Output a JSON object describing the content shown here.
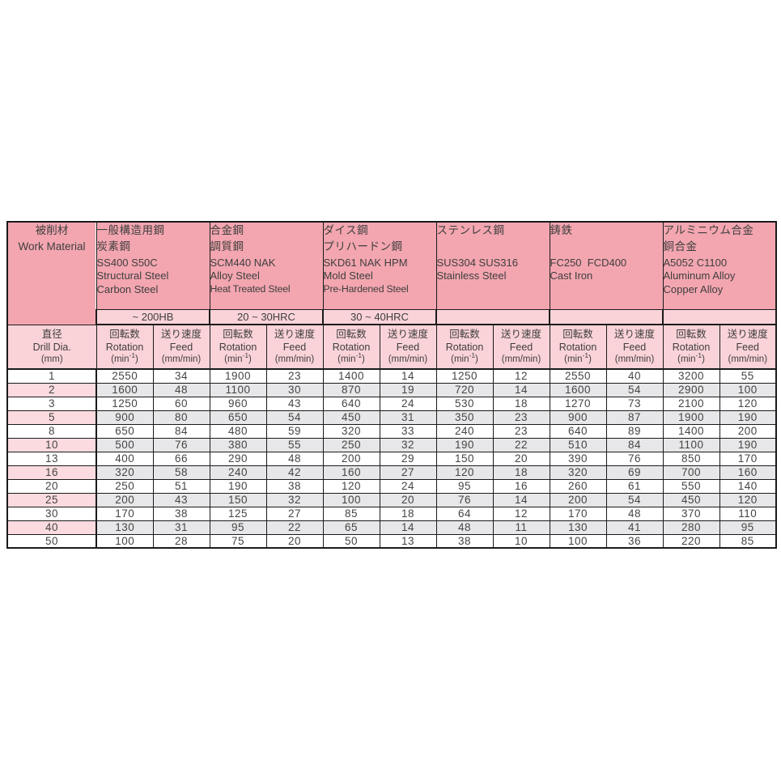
{
  "colors": {
    "header_pink": "#f3a6b0",
    "light_pink": "#fad3d8",
    "row_pink": "#fbdbdf",
    "row_gray": "#e7e7e9",
    "border": "#1a1a1a"
  },
  "table": {
    "corner": {
      "jp": "被削材",
      "en": "Work Material"
    },
    "dia_header": {
      "jp": "直径",
      "en": "Drill Dia.",
      "unit": "(mm)"
    },
    "col_header": {
      "rotation_jp": "回転数",
      "rotation_en": "Rotation",
      "rotation_unit_prefix": "(min",
      "rotation_unit_sup": "-1",
      "rotation_unit_suffix": ")",
      "feed_jp": "送り速度",
      "feed_en": "Feed",
      "feed_unit": "(mm/min)"
    },
    "materials": [
      {
        "slug": "structural-carbon-steel",
        "jp_lines": [
          "一般構造用鋼",
          "炭素鋼"
        ],
        "en_lines": [
          "SS400 S50C",
          "Structural Steel",
          "Carbon Steel"
        ],
        "hardness": "~ 200HB"
      },
      {
        "slug": "alloy-heat-treated-steel",
        "jp_lines": [
          "合金鋼",
          "調質鋼"
        ],
        "en_lines": [
          "SCM440 NAK",
          "Alloy Steel",
          "Heat Treated Steel"
        ],
        "hardness": "20 ~ 30HRC"
      },
      {
        "slug": "mold-pre-hardened-steel",
        "jp_lines": [
          "ダイス鋼",
          "プリハードン鋼"
        ],
        "en_lines": [
          "SKD61 NAK HPM",
          "Mold Steel",
          "Pre-Hardened Steel"
        ],
        "hardness": "30 ~ 40HRC"
      },
      {
        "slug": "stainless-steel",
        "jp_lines": [
          "ステンレス鋼"
        ],
        "en_lines": [
          "SUS304 SUS316",
          "Stainless Steel"
        ],
        "hardness": ""
      },
      {
        "slug": "cast-iron",
        "jp_lines": [
          "鋳鉄"
        ],
        "en_lines": [
          "FC250  FCD400",
          "Cast Iron"
        ],
        "hardness": ""
      },
      {
        "slug": "aluminum-copper-alloy",
        "jp_lines": [
          "アルミニウム合金",
          "銅合金"
        ],
        "en_lines": [
          "A5052 C1100",
          "Aluminum Alloy",
          "Copper Alloy"
        ],
        "hardness": ""
      }
    ],
    "rows": [
      {
        "dia": "1",
        "values": [
          "2550",
          "34",
          "1900",
          "23",
          "1400",
          "14",
          "1250",
          "12",
          "2550",
          "40",
          "3200",
          "55"
        ]
      },
      {
        "dia": "2",
        "values": [
          "1600",
          "48",
          "1100",
          "30",
          "870",
          "19",
          "720",
          "14",
          "1600",
          "54",
          "2900",
          "100"
        ]
      },
      {
        "dia": "3",
        "values": [
          "1250",
          "60",
          "960",
          "43",
          "640",
          "24",
          "530",
          "18",
          "1270",
          "73",
          "2100",
          "120"
        ]
      },
      {
        "dia": "5",
        "values": [
          "900",
          "80",
          "650",
          "54",
          "450",
          "31",
          "350",
          "23",
          "900",
          "87",
          "1900",
          "190"
        ]
      },
      {
        "dia": "8",
        "values": [
          "650",
          "84",
          "480",
          "59",
          "320",
          "33",
          "240",
          "23",
          "640",
          "89",
          "1400",
          "200"
        ]
      },
      {
        "dia": "10",
        "values": [
          "500",
          "76",
          "380",
          "55",
          "250",
          "32",
          "190",
          "22",
          "510",
          "84",
          "1100",
          "190"
        ]
      },
      {
        "dia": "13",
        "values": [
          "400",
          "66",
          "290",
          "48",
          "200",
          "29",
          "150",
          "20",
          "390",
          "76",
          "850",
          "170"
        ]
      },
      {
        "dia": "16",
        "values": [
          "320",
          "58",
          "240",
          "42",
          "160",
          "27",
          "120",
          "18",
          "320",
          "69",
          "700",
          "160"
        ]
      },
      {
        "dia": "20",
        "values": [
          "250",
          "51",
          "190",
          "38",
          "120",
          "24",
          "95",
          "16",
          "260",
          "61",
          "550",
          "140"
        ]
      },
      {
        "dia": "25",
        "values": [
          "200",
          "43",
          "150",
          "32",
          "100",
          "20",
          "76",
          "14",
          "200",
          "54",
          "450",
          "120"
        ]
      },
      {
        "dia": "30",
        "values": [
          "170",
          "38",
          "125",
          "27",
          "85",
          "18",
          "64",
          "12",
          "170",
          "48",
          "370",
          "110"
        ]
      },
      {
        "dia": "40",
        "values": [
          "130",
          "31",
          "95",
          "22",
          "65",
          "14",
          "48",
          "11",
          "130",
          "41",
          "280",
          "95"
        ]
      },
      {
        "dia": "50",
        "values": [
          "100",
          "28",
          "75",
          "20",
          "50",
          "13",
          "38",
          "10",
          "100",
          "36",
          "220",
          "85"
        ]
      }
    ]
  }
}
